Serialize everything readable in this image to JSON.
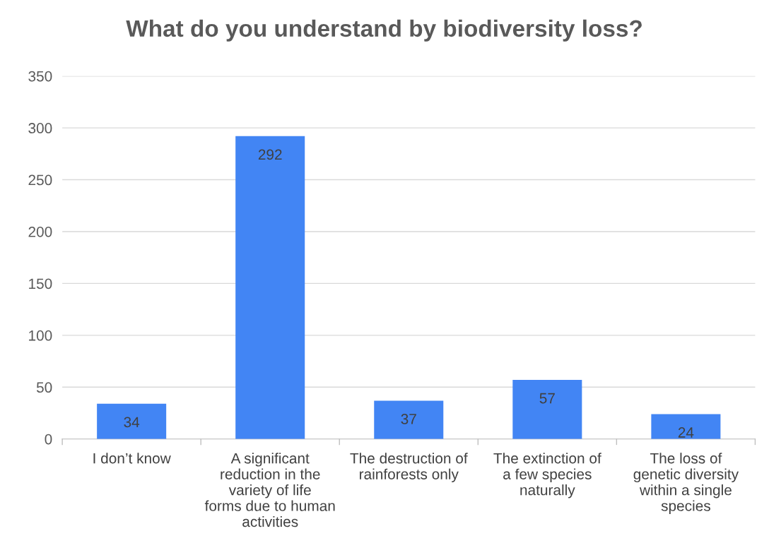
{
  "chart_data": {
    "type": "bar",
    "title": "What do you understand by biodiversity loss?",
    "categories": [
      "I don’t know",
      "A significant reduction in the variety of life forms due to human activities",
      "The destruction of rainforests only",
      "The extinction of a few species naturally",
      "The loss of genetic diversity within a single species"
    ],
    "values": [
      34,
      292,
      37,
      57,
      24
    ],
    "color": "#4285f4",
    "ylim": [
      0,
      350
    ],
    "yticks": [
      0,
      50,
      100,
      150,
      200,
      250,
      300,
      350
    ],
    "grid": "y",
    "data_labels": true,
    "legend": false
  }
}
